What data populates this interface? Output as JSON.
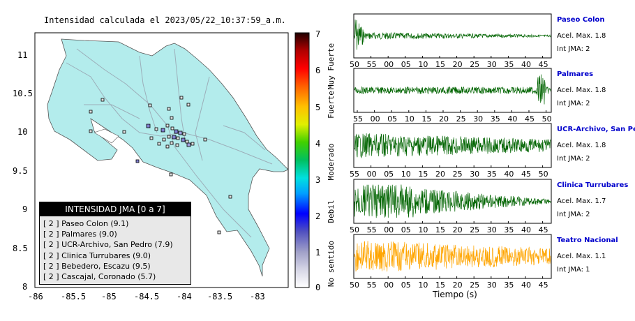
{
  "title": "Intensidad calculada el 2023/05/22_10:37:59_a.m.",
  "map": {
    "x_ticks": [
      "-86",
      "-85.5",
      "-85",
      "-84.5",
      "-84",
      "-83.5",
      "-83"
    ],
    "y_ticks": [
      "11",
      "10.5",
      "10",
      "9.5",
      "9",
      "8.5",
      "8"
    ],
    "land_color": "#b3ecec",
    "sea_color": "#ffffff"
  },
  "colorbar": {
    "ticks": [
      "7",
      "6",
      "5",
      "4",
      "3",
      "2",
      "1",
      "0"
    ],
    "categories": [
      "Muy Fuerte",
      "Fuerte",
      "Moderado",
      "Debil",
      "No sentido"
    ]
  },
  "legend": {
    "header": "INTENSIDAD JMA [0 a 7]",
    "rows": [
      "[ 2 ]  Paseo Colon (9.1)",
      "[ 2 ]  Palmares (9.0)",
      "[ 2 ]  UCR-Archivo, San Pedro (7.9)",
      "[ 2 ]  Clinica Turrubares (9.0)",
      "[ 2 ]  Bebedero, Escazu (9.5)",
      "[ 2 ]  Cascajal, Coronado (5.7)"
    ]
  },
  "stations": [
    {
      "name": "Paseo Colon",
      "acc": "Acel. Max. 1.8",
      "int": "Int JMA: 2",
      "color": "#006400",
      "ticks": [
        "50",
        "55",
        "00",
        "05",
        "10",
        "15",
        "20",
        "25",
        "30",
        "35",
        "40",
        "45"
      ]
    },
    {
      "name": "Palmares",
      "acc": "Acel. Max. 1.8",
      "int": "Int JMA: 2",
      "color": "#006400",
      "ticks": [
        "55",
        "00",
        "05",
        "10",
        "15",
        "20",
        "25",
        "30",
        "35",
        "40",
        "45",
        "50"
      ]
    },
    {
      "name": "UCR-Archivo, San Pedro",
      "acc": "Acel. Max. 1.8",
      "int": "Int JMA: 2",
      "color": "#006400",
      "ticks": [
        "55",
        "00",
        "05",
        "10",
        "15",
        "20",
        "25",
        "30",
        "35",
        "40",
        "45",
        "50"
      ]
    },
    {
      "name": "Clinica Turrubares",
      "acc": "Acel. Max. 1.7",
      "int": "Int JMA: 2",
      "color": "#006400",
      "ticks": [
        "50",
        "55",
        "00",
        "05",
        "10",
        "15",
        "20",
        "25",
        "30",
        "35",
        "40",
        "45"
      ]
    },
    {
      "name": "Teatro Nacional",
      "acc": "Acel. Max. 1.1",
      "int": "Int JMA: 1",
      "color": "#ffa500",
      "ticks": [
        "50",
        "55",
        "00",
        "05",
        "10",
        "15",
        "20",
        "25",
        "30",
        "35",
        "40",
        "45"
      ]
    }
  ],
  "xaxis_label": "Tiempo (s)"
}
